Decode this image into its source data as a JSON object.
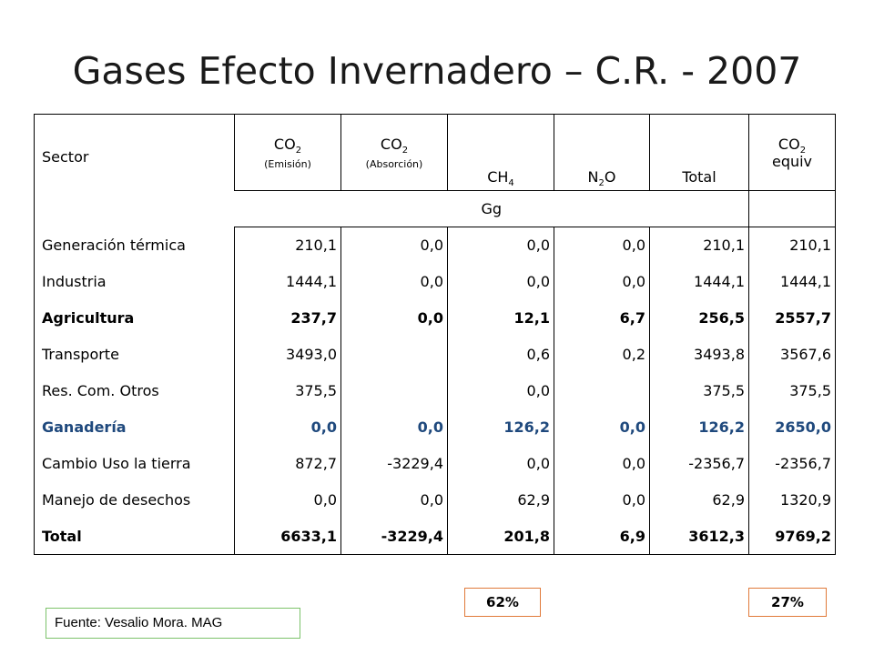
{
  "title": "Gases Efecto Invernadero – C.R. - 2007",
  "table": {
    "header": {
      "sector": "Sector",
      "co2_emision": {
        "base": "CO",
        "sub": "2",
        "note": "(Emisión)"
      },
      "co2_absorcion": {
        "base": "CO",
        "sub": "2",
        "note": "(Absorción)"
      },
      "ch4": {
        "base": "CH",
        "sub": "4"
      },
      "n2o": {
        "base": "N",
        "sub": "2",
        "tail": "O"
      },
      "total": "Total",
      "co2_equiv": {
        "base": "CO",
        "sub": "2",
        "line2": "equiv"
      }
    },
    "units": "Gg",
    "rows": [
      {
        "sector": "Generación térmica",
        "co2_emision": "210,1",
        "co2_absorcion": "0,0",
        "ch4": "0,0",
        "n2o": "0,0",
        "total": "210,1",
        "co2_equiv": "210,1"
      },
      {
        "sector": "Industria",
        "co2_emision": "1444,1",
        "co2_absorcion": "0,0",
        "ch4": "0,0",
        "n2o": "0,0",
        "total": "1444,1",
        "co2_equiv": "1444,1"
      },
      {
        "sector": "Agricultura",
        "co2_emision": "237,7",
        "co2_absorcion": "0,0",
        "ch4": "12,1",
        "n2o": "6,7",
        "total": "256,5",
        "co2_equiv": "2557,7"
      },
      {
        "sector": "Transporte",
        "co2_emision": "3493,0",
        "co2_absorcion": "",
        "ch4": "0,6",
        "n2o": "0,2",
        "total": "3493,8",
        "co2_equiv": "3567,6"
      },
      {
        "sector": "Res. Com. Otros",
        "co2_emision": "375,5",
        "co2_absorcion": "",
        "ch4": "0,0",
        "n2o": "",
        "total": "375,5",
        "co2_equiv": "375,5"
      },
      {
        "sector": "Ganadería",
        "co2_emision": "0,0",
        "co2_absorcion": "0,0",
        "ch4": "126,2",
        "n2o": "0,0",
        "total": "126,2",
        "co2_equiv": "2650,0"
      },
      {
        "sector": "Cambio Uso la tierra",
        "co2_emision": "872,7",
        "co2_absorcion": "-3229,4",
        "ch4": "0,0",
        "n2o": "0,0",
        "total": "-2356,7",
        "co2_equiv": "-2356,7"
      },
      {
        "sector": "Manejo de desechos",
        "co2_emision": "0,0",
        "co2_absorcion": "0,0",
        "ch4": "62,9",
        "n2o": "0,0",
        "total": "62,9",
        "co2_equiv": "1320,9"
      },
      {
        "sector": "Total",
        "co2_emision": "6633,1",
        "co2_absorcion": "-3229,4",
        "ch4": "201,8",
        "n2o": "6,9",
        "total": "3612,3",
        "co2_equiv": "9769,2"
      }
    ]
  },
  "percent_ch4": "62%",
  "percent_co2_equiv": "27%",
  "source": "Fuente: Vesalio Mora. MAG",
  "colors": {
    "highlight_text": "#1f497d",
    "percent_box_border": "#e07a3a",
    "source_box_border": "#7cc26a"
  }
}
